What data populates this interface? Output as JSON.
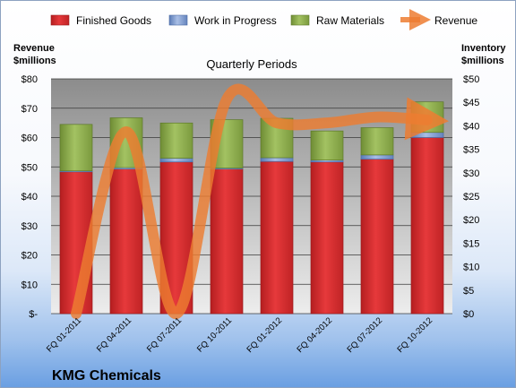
{
  "company": "KMG Chemicals",
  "chart_data": {
    "type": "bar",
    "stacked": true,
    "subtitle": "Quarterly Periods",
    "left_axis_title": [
      "Revenue",
      "$millions"
    ],
    "right_axis_title": [
      "Inventory",
      "$millions"
    ],
    "categories": [
      "FQ 01-2011",
      "FQ 04-2011",
      "FQ 07-2011",
      "FQ 10-2011",
      "FQ 01-2012",
      "FQ 04-2012",
      "FQ 07-2012",
      "FQ 10-2012"
    ],
    "left_ticks": [
      "$-",
      "$10",
      "$20",
      "$30",
      "$40",
      "$50",
      "$60",
      "$70",
      "$80"
    ],
    "right_ticks": [
      "$0",
      "$5",
      "$10",
      "$15",
      "$20",
      "$25",
      "$30",
      "$35",
      "$40",
      "$45",
      "$50"
    ],
    "left_ylim": [
      0,
      80
    ],
    "right_ylim": [
      0,
      50
    ],
    "grid": true,
    "legend_position": "top",
    "series": [
      {
        "name": "Finished Goods",
        "axis": "right",
        "kind": "bar",
        "color": "#d42a2c",
        "values": [
          30.2,
          30.8,
          32.3,
          30.8,
          32.4,
          32.3,
          32.9,
          37.5
        ]
      },
      {
        "name": "Work in Progress",
        "axis": "right",
        "kind": "bar",
        "color": "#6d8fc9",
        "values": [
          0.2,
          0.3,
          0.8,
          0.2,
          0.8,
          0.4,
          0.9,
          1.1
        ]
      },
      {
        "name": "Raw Materials",
        "axis": "right",
        "kind": "bar",
        "color": "#8cb04b",
        "values": [
          9.9,
          10.6,
          7.5,
          10.3,
          8.4,
          6.2,
          5.8,
          6.5
        ]
      },
      {
        "name": "Revenue",
        "axis": "left",
        "kind": "line",
        "color": "#ed7d31",
        "values": [
          0,
          62,
          0,
          73,
          65,
          65,
          67,
          66
        ]
      }
    ]
  }
}
